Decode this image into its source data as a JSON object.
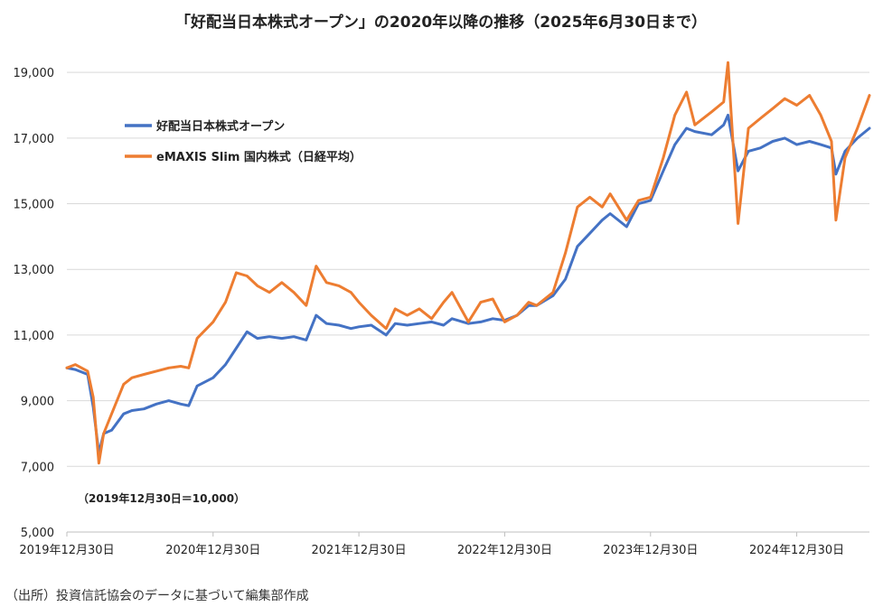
{
  "chart_data": {
    "type": "line",
    "title": "「好配当日本株式オープン」の2020年以降の推移（2025年6月30日まで）",
    "xlabel": "",
    "ylabel": "",
    "ylim": [
      5000,
      19500
    ],
    "yticks": [
      "5,000",
      "7,000",
      "9,000",
      "11,000",
      "13,000",
      "15,000",
      "17,000",
      "19,000"
    ],
    "ytick_values": [
      5000,
      7000,
      9000,
      11000,
      13000,
      15000,
      17000,
      19000
    ],
    "xticks": [
      "2019年12月30日",
      "2020年12月30日",
      "2021年12月30日",
      "2022年12月30日",
      "2023年12月30日",
      "2024年12月30日"
    ],
    "xtick_values": [
      "2019-12-30",
      "2020-12-30",
      "2021-12-30",
      "2022-12-30",
      "2023-12-30",
      "2024-12-30"
    ],
    "xlim": [
      "2019-12-30",
      "2025-06-30"
    ],
    "grid": "horizontal",
    "legend_position": "top-left",
    "annotation": "（2019年12月30日＝10,000）",
    "series": [
      {
        "name": "好配当日本株式オープン",
        "color": "#4472C4",
        "x": [
          "2019-12-30",
          "2020-01-20",
          "2020-02-20",
          "2020-03-05",
          "2020-03-19",
          "2020-03-31",
          "2020-04-20",
          "2020-05-20",
          "2020-06-10",
          "2020-07-10",
          "2020-08-10",
          "2020-09-10",
          "2020-10-10",
          "2020-10-30",
          "2020-11-20",
          "2020-12-30",
          "2021-01-30",
          "2021-02-26",
          "2021-03-25",
          "2021-04-20",
          "2021-05-20",
          "2021-06-20",
          "2021-07-20",
          "2021-08-20",
          "2021-09-14",
          "2021-10-10",
          "2021-11-10",
          "2021-12-10",
          "2021-12-30",
          "2022-01-30",
          "2022-03-08",
          "2022-03-31",
          "2022-04-30",
          "2022-05-30",
          "2022-06-30",
          "2022-07-30",
          "2022-08-20",
          "2022-09-30",
          "2022-10-31",
          "2022-11-30",
          "2022-12-30",
          "2023-01-30",
          "2023-02-28",
          "2023-03-20",
          "2023-04-30",
          "2023-05-31",
          "2023-06-30",
          "2023-07-31",
          "2023-08-31",
          "2023-09-20",
          "2023-10-31",
          "2023-11-30",
          "2023-12-30",
          "2024-01-31",
          "2024-02-29",
          "2024-03-29",
          "2024-04-19",
          "2024-05-31",
          "2024-06-30",
          "2024-07-11",
          "2024-08-05",
          "2024-08-31",
          "2024-09-30",
          "2024-10-31",
          "2024-11-30",
          "2024-12-30",
          "2025-01-31",
          "2025-02-28",
          "2025-03-27",
          "2025-04-07",
          "2025-04-30",
          "2025-05-31",
          "2025-06-30"
        ],
        "values": [
          10000,
          9950,
          9800,
          8800,
          7400,
          8000,
          8100,
          8600,
          8700,
          8750,
          8900,
          9000,
          8900,
          8850,
          9450,
          9700,
          10100,
          10600,
          11100,
          10900,
          10950,
          10900,
          10950,
          10850,
          11600,
          11350,
          11300,
          11200,
          11250,
          11300,
          11000,
          11350,
          11300,
          11350,
          11400,
          11300,
          11500,
          11350,
          11400,
          11500,
          11450,
          11600,
          11900,
          11900,
          12200,
          12700,
          13700,
          14100,
          14500,
          14700,
          14300,
          15000,
          15100,
          16000,
          16800,
          17300,
          17200,
          17100,
          17400,
          17700,
          16000,
          16600,
          16700,
          16900,
          17000,
          16800,
          16900,
          16800,
          16700,
          15900,
          16600,
          17000,
          17300
        ]
      },
      {
        "name": "eMAXIS Slim 国内株式（日経平均）",
        "color": "#ED7D31",
        "x": [
          "2019-12-30",
          "2020-01-20",
          "2020-02-20",
          "2020-03-05",
          "2020-03-19",
          "2020-03-31",
          "2020-04-20",
          "2020-05-20",
          "2020-06-10",
          "2020-07-10",
          "2020-08-10",
          "2020-09-10",
          "2020-10-10",
          "2020-10-30",
          "2020-11-20",
          "2020-12-30",
          "2021-01-30",
          "2021-02-26",
          "2021-03-25",
          "2021-04-20",
          "2021-05-20",
          "2021-06-20",
          "2021-07-20",
          "2021-08-20",
          "2021-09-14",
          "2021-10-10",
          "2021-11-10",
          "2021-12-10",
          "2021-12-30",
          "2022-01-30",
          "2022-03-08",
          "2022-03-31",
          "2022-04-30",
          "2022-05-30",
          "2022-06-30",
          "2022-07-30",
          "2022-08-20",
          "2022-09-30",
          "2022-10-31",
          "2022-11-30",
          "2022-12-30",
          "2023-01-30",
          "2023-02-28",
          "2023-03-20",
          "2023-04-30",
          "2023-05-31",
          "2023-06-30",
          "2023-07-31",
          "2023-08-31",
          "2023-09-20",
          "2023-10-31",
          "2023-11-30",
          "2023-12-30",
          "2024-01-31",
          "2024-02-29",
          "2024-03-29",
          "2024-04-19",
          "2024-05-31",
          "2024-06-30",
          "2024-07-11",
          "2024-08-05",
          "2024-08-31",
          "2024-09-30",
          "2024-10-31",
          "2024-11-30",
          "2024-12-30",
          "2025-01-31",
          "2025-02-28",
          "2025-03-27",
          "2025-04-07",
          "2025-04-30",
          "2025-05-31",
          "2025-06-30"
        ],
        "values": [
          10000,
          10100,
          9900,
          9100,
          7100,
          8000,
          8600,
          9500,
          9700,
          9800,
          9900,
          10000,
          10050,
          10000,
          10900,
          11400,
          12000,
          12900,
          12800,
          12500,
          12300,
          12600,
          12300,
          11900,
          13100,
          12600,
          12500,
          12300,
          12000,
          11600,
          11200,
          11800,
          11600,
          11800,
          11500,
          12000,
          12300,
          11400,
          12000,
          12100,
          11400,
          11600,
          12000,
          11900,
          12300,
          13500,
          14900,
          15200,
          14900,
          15300,
          14500,
          15100,
          15200,
          16400,
          17700,
          18400,
          17400,
          17800,
          18100,
          19300,
          14400,
          17300,
          17600,
          17900,
          18200,
          18000,
          18300,
          17700,
          16900,
          14500,
          16400,
          17300,
          18300
        ]
      }
    ]
  },
  "source_note": "（出所）投資信託協会のデータに基づいて編集部作成"
}
